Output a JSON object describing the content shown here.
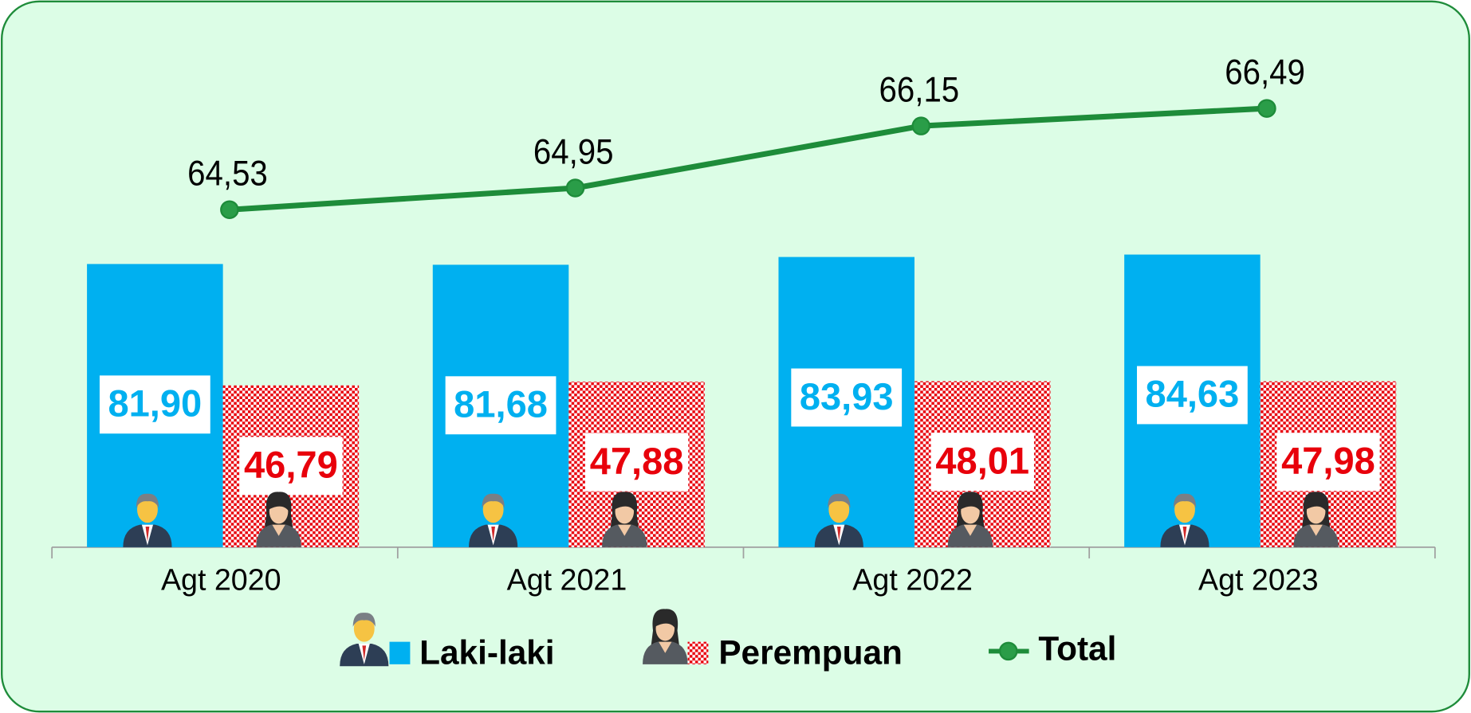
{
  "chart_data": {
    "type": "bar",
    "categories": [
      "Agt 2020",
      "Agt 2021",
      "Agt 2022",
      "Agt 2023"
    ],
    "series": [
      {
        "name": "Laki-laki",
        "color": "#00b0f0",
        "values": [
          81.9,
          81.68,
          83.93,
          84.63
        ],
        "value_labels": [
          "81,90",
          "81,68",
          "83,93",
          "84,63"
        ]
      },
      {
        "name": "Perempuan",
        "color": "#ff0000",
        "values": [
          46.79,
          47.88,
          48.01,
          47.98
        ],
        "value_labels": [
          "46,79",
          "47,88",
          "48,01",
          "47,98"
        ]
      },
      {
        "name": "Total",
        "type": "line",
        "axis": "y2",
        "color": "#1e8c3a",
        "values": [
          64.53,
          64.95,
          66.15,
          66.49
        ],
        "value_labels": [
          "64,53",
          "64,95",
          "66,15",
          "66,49"
        ]
      }
    ],
    "ylim": [
      0,
      142
    ],
    "y2lim": [
      58,
      67.5
    ],
    "grid": false,
    "legend": "bottom"
  }
}
